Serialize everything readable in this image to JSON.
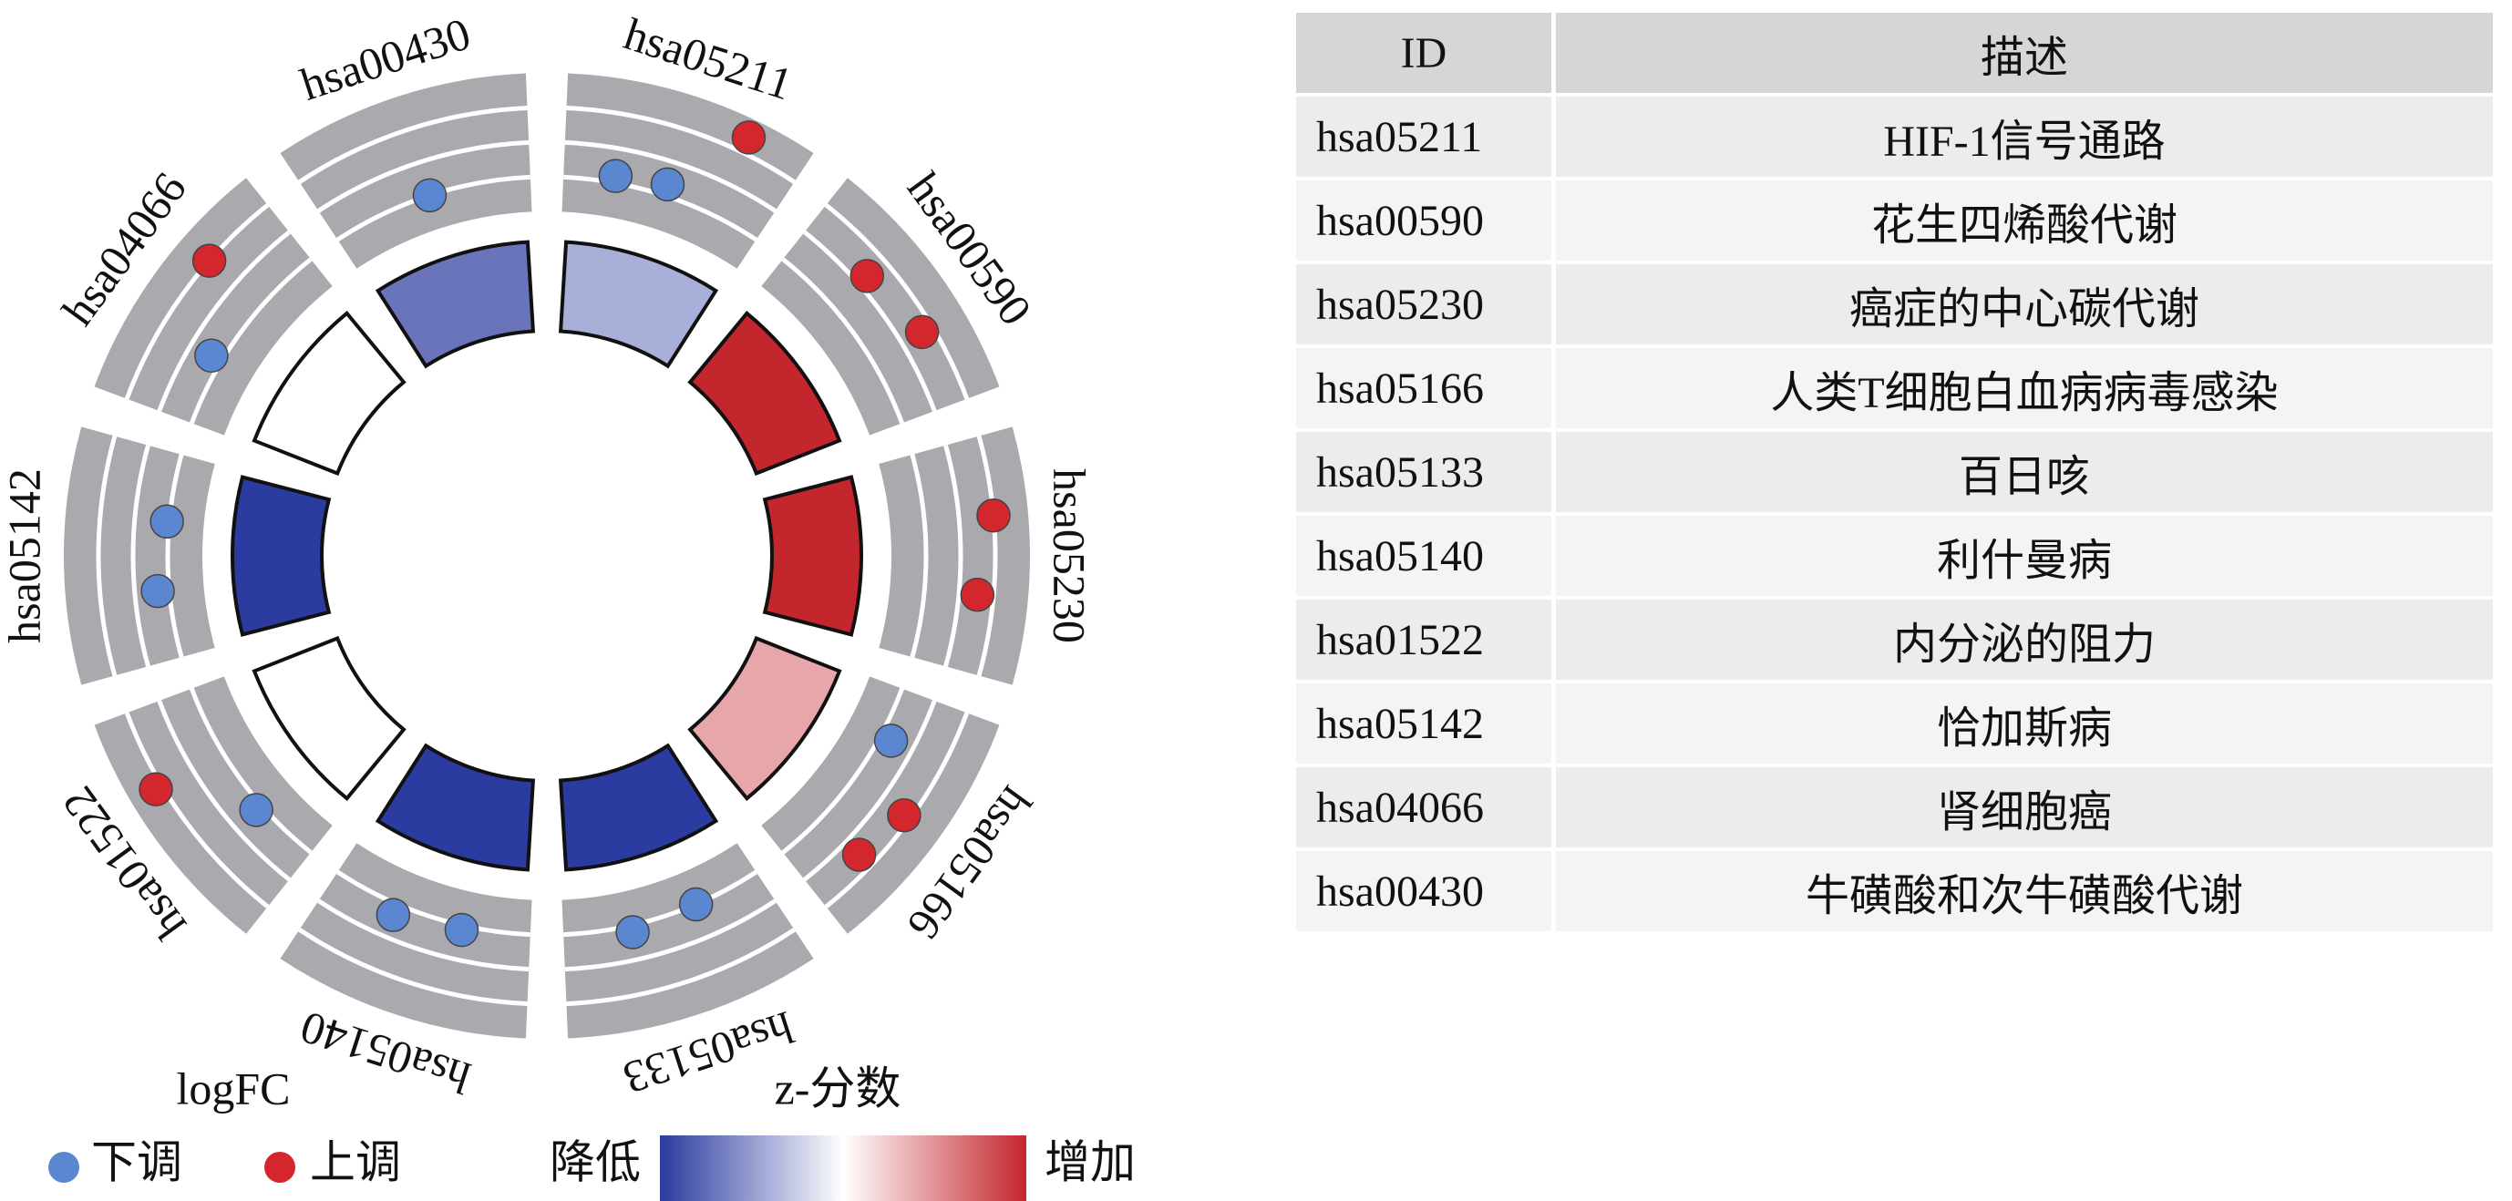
{
  "chart_data": {
    "type": "gocircle",
    "categories": [
      "hsa05211",
      "hsa00590",
      "hsa05230",
      "hsa05166",
      "hsa05133",
      "hsa05140",
      "hsa01522",
      "hsa05142",
      "hsa04066",
      "hsa00430"
    ],
    "zscores": [
      -0.577,
      1.414,
      1.414,
      0.577,
      -1.414,
      -1.414,
      0,
      -1.414,
      0,
      -1
    ],
    "genes_logfc": [
      [
        -1.2,
        -1.0,
        2.2
      ],
      [
        0.5,
        1.0
      ],
      [
        1.5,
        0.8
      ],
      [
        -1.0,
        1.2,
        0.8
      ],
      [
        -1.5,
        -1.2
      ],
      [
        -1.3,
        -1.0
      ],
      [
        -1.2,
        1.8
      ],
      [
        -1.0,
        -1.4
      ],
      [
        -1.0,
        1.5
      ],
      [
        -1.5
      ]
    ],
    "ylim": [
      -3,
      3
    ],
    "yticks": [
      -1.5,
      0,
      1.5
    ],
    "zlim": [
      -1.414,
      1.414
    ],
    "colors": {
      "down": "#5b87d0",
      "up": "#d3262d",
      "low": "#2b3b9f",
      "mid": "#ffffff",
      "high": "#c4262d",
      "ring": "#a9a9ae"
    },
    "legend": {
      "logfc_title": "logFC",
      "down": "下调",
      "up": "上调",
      "z_title": "z-分数",
      "low": "降低",
      "high": "增加"
    }
  },
  "table": {
    "header": [
      "ID",
      "描述"
    ],
    "rows": [
      [
        "hsa05211",
        "HIF-1信号通路"
      ],
      [
        "hsa00590",
        "花生四烯酸代谢"
      ],
      [
        "hsa05230",
        "癌症的中心碳代谢"
      ],
      [
        "hsa05166",
        "人类T细胞白血病病毒感染"
      ],
      [
        "hsa05133",
        "百日咳"
      ],
      [
        "hsa05140",
        "利什曼病"
      ],
      [
        "hsa01522",
        "内分泌的阻力"
      ],
      [
        "hsa05142",
        "恰加斯病"
      ],
      [
        "hsa04066",
        "肾细胞癌"
      ],
      [
        "hsa00430",
        "牛磺酸和次牛磺酸代谢"
      ]
    ]
  }
}
